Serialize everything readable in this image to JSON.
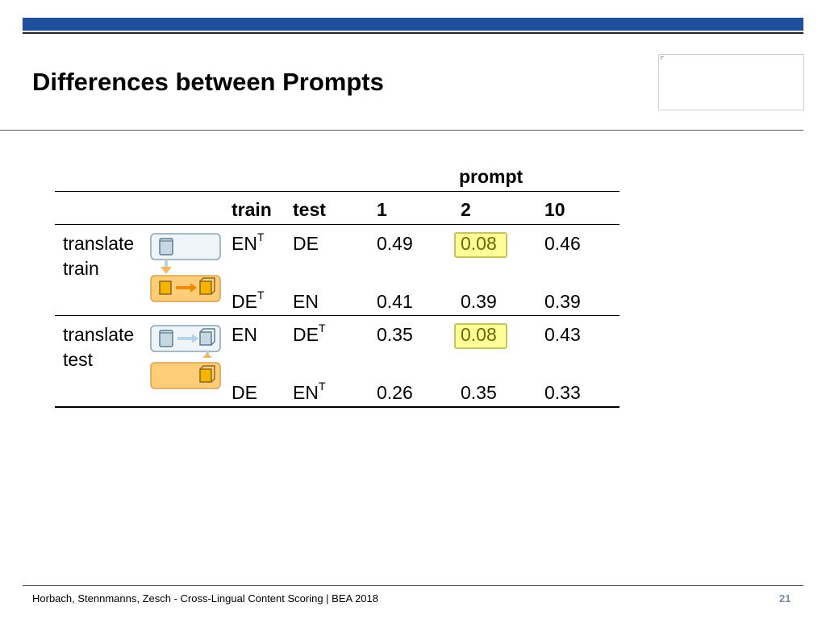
{
  "slide": {
    "title": "Differences between Prompts",
    "footer": "Horbach, Stennmanns, Zesch - Cross-Lingual Content Scoring | BEA 2018",
    "page_number": "21"
  },
  "table": {
    "group_header": "prompt",
    "headers": {
      "train": "train",
      "test": "test",
      "p1": "1",
      "p2": "2",
      "p10": "10"
    },
    "groups": [
      {
        "label_line1": "translate",
        "label_line2": "train",
        "rows": [
          {
            "train": "EN",
            "train_sup": "T",
            "test": "DE",
            "test_sup": "",
            "p1": "0.49",
            "p2": "0.08",
            "p10": "0.46",
            "p2_highlight": true
          },
          {
            "train": "DE",
            "train_sup": "T",
            "test": "EN",
            "test_sup": "",
            "p1": "0.41",
            "p2": "0.39",
            "p10": "0.39",
            "p2_highlight": false
          }
        ]
      },
      {
        "label_line1": "translate",
        "label_line2": "test",
        "rows": [
          {
            "train": "EN",
            "train_sup": "",
            "test": "DE",
            "test_sup": "T",
            "p1": "0.35",
            "p2": "0.08",
            "p10": "0.43",
            "p2_highlight": true
          },
          {
            "train": "DE",
            "train_sup": "",
            "test": "EN",
            "test_sup": "T",
            "p1": "0.26",
            "p2": "0.35",
            "p10": "0.33",
            "p2_highlight": false
          }
        ]
      }
    ]
  },
  "colors": {
    "accent": "#1f4e9c",
    "highlight": "#ffff99",
    "icon_blue": "#dde8ef",
    "icon_orange": "#ffcc77"
  },
  "icons": [
    "translate-train-diagram-icon",
    "translate-test-diagram-icon"
  ]
}
